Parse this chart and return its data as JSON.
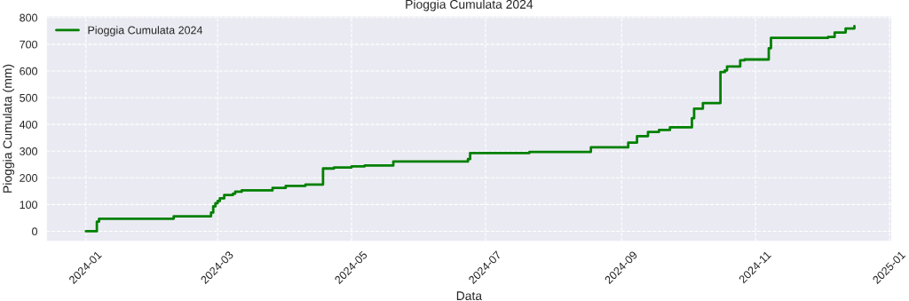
{
  "chart_data": {
    "type": "step",
    "title": "Pioggia Cumulata 2024",
    "xlabel": "Data",
    "ylabel": "Pioggia Cumulata (mm)",
    "x": [
      "2024-01-01",
      "2024-01-06",
      "2024-01-07",
      "2024-02-10",
      "2024-02-27",
      "2024-02-28",
      "2024-02-29",
      "2024-03-01",
      "2024-03-02",
      "2024-03-04",
      "2024-03-08",
      "2024-03-09",
      "2024-03-12",
      "2024-03-26",
      "2024-04-01",
      "2024-04-10",
      "2024-04-18",
      "2024-04-23",
      "2024-05-01",
      "2024-05-07",
      "2024-05-20",
      "2024-06-23",
      "2024-06-24",
      "2024-07-21",
      "2024-08-18",
      "2024-09-04",
      "2024-09-08",
      "2024-09-13",
      "2024-09-18",
      "2024-09-23",
      "2024-10-03",
      "2024-10-04",
      "2024-10-08",
      "2024-10-16",
      "2024-10-18",
      "2024-10-19",
      "2024-10-25",
      "2024-10-27",
      "2024-11-07",
      "2024-11-08",
      "2024-12-04",
      "2024-12-07",
      "2024-12-12",
      "2024-12-16"
    ],
    "series": [
      {
        "name": "Pioggia Cumulata 2024",
        "color": "#008000",
        "values": [
          0,
          36,
          47,
          56,
          70,
          93,
          105,
          113,
          123,
          136,
          141,
          148,
          153,
          162,
          170,
          175,
          235,
          239,
          243,
          246,
          261,
          270,
          293,
          297,
          314,
          332,
          356,
          372,
          379,
          389,
          423,
          459,
          480,
          596,
          602,
          617,
          640,
          643,
          685,
          724,
          727,
          744,
          759,
          768
        ]
      }
    ],
    "xlim": [
      "2023-12-14",
      "2025-01-02"
    ],
    "xticks": [
      {
        "value": "2024-01-01",
        "label": "2024-01"
      },
      {
        "value": "2024-03-01",
        "label": "2024-03"
      },
      {
        "value": "2024-05-01",
        "label": "2024-05"
      },
      {
        "value": "2024-07-01",
        "label": "2024-07"
      },
      {
        "value": "2024-09-01",
        "label": "2024-09"
      },
      {
        "value": "2024-11-01",
        "label": "2024-11"
      },
      {
        "value": "2025-01-01",
        "label": "2025-01"
      }
    ],
    "ylim": [
      -38,
      806
    ],
    "yticks": [
      0,
      100,
      200,
      300,
      400,
      500,
      600,
      700,
      800
    ],
    "grid": true,
    "legend": "top left",
    "line_style": "solid"
  }
}
